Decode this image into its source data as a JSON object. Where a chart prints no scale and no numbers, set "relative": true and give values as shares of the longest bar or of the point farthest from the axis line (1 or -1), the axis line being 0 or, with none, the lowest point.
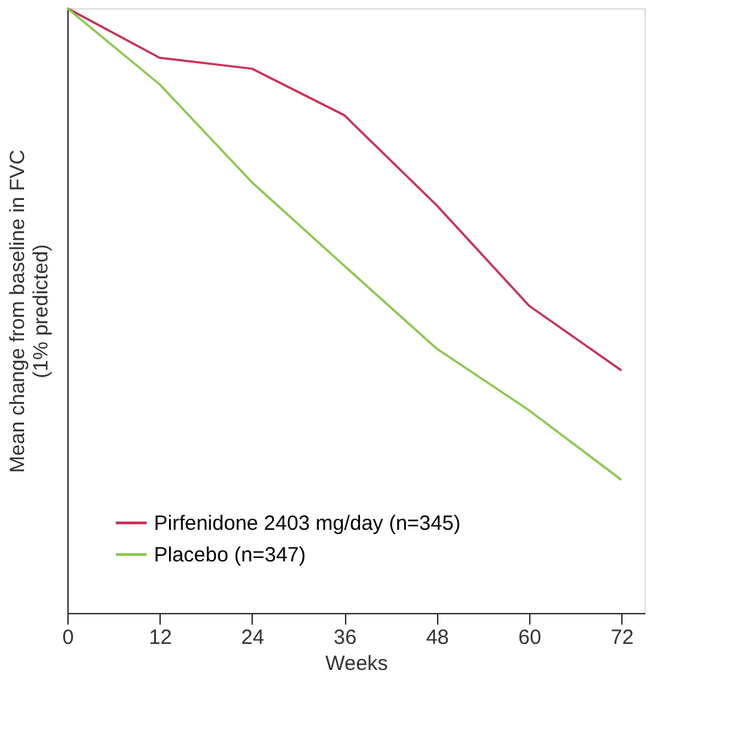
{
  "chart_data": {
    "type": "line",
    "relative": true,
    "xlabel": "Weeks",
    "ylabel": "Mean change from baseline in FVC\n(1% predicted)",
    "x": [
      0,
      12,
      24,
      36,
      48,
      60,
      72
    ],
    "xlim": [
      0,
      75
    ],
    "xticks": [
      0,
      12,
      24,
      36,
      48,
      60,
      72
    ],
    "series": [
      {
        "name": "Pirfenidone 2403 mg/day (n=345)",
        "color": "#c8325a",
        "values": [
          1.0,
          0.918,
          0.9,
          0.823,
          0.674,
          0.508,
          0.401
        ]
      },
      {
        "name": "Placebo (n=347)",
        "color": "#8cc850",
        "values": [
          1.0,
          0.874,
          0.712,
          0.574,
          0.437,
          0.335,
          0.22
        ]
      }
    ],
    "legend": "bottom left",
    "grid": false,
    "marker": "none",
    "line_style": "solid"
  }
}
